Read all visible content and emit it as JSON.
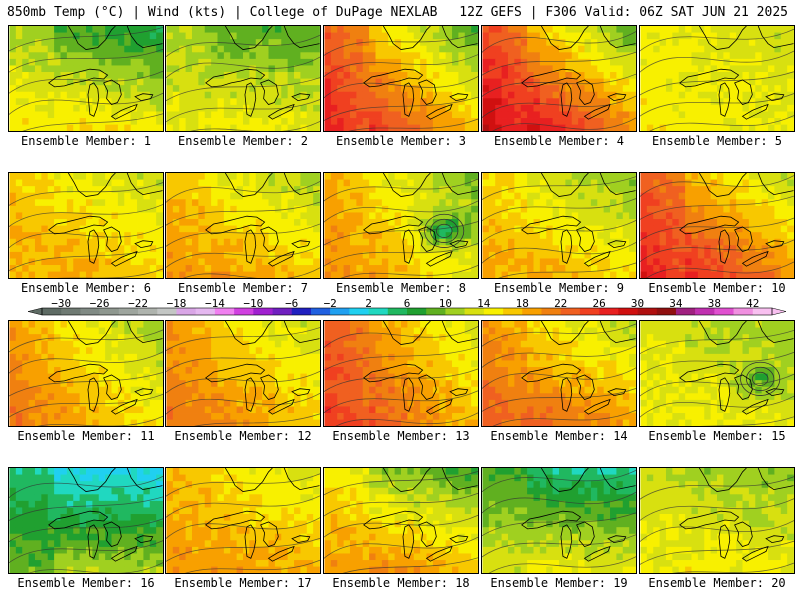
{
  "header": {
    "title_left": "850mb Temp (°C) | Wind (kts) | College of DuPage NEXLAB",
    "title_right": "12Z GEFS | F306 Valid: 06Z SAT JUN 21 2025"
  },
  "member_label_prefix": "Ensemble Member:",
  "members": [
    {
      "number": "1",
      "base": 12,
      "warm_west": 2,
      "cold_north": 6,
      "cool_spot": 0
    },
    {
      "number": "2",
      "base": 12,
      "warm_west": 1,
      "cold_north": 4,
      "cool_spot": 0
    },
    {
      "number": "3",
      "base": 18,
      "warm_west": 8,
      "cold_north": 6,
      "cool_spot": 0
    },
    {
      "number": "4",
      "base": 20,
      "warm_west": 8,
      "cold_north": 8,
      "cool_spot": 0
    },
    {
      "number": "5",
      "base": 14,
      "warm_west": 1,
      "cold_north": 1,
      "cool_spot": 0
    },
    {
      "number": "6",
      "base": 16,
      "warm_west": 2,
      "cold_north": 3,
      "cool_spot": 0
    },
    {
      "number": "7",
      "base": 16,
      "warm_west": 3,
      "cold_north": 4,
      "cool_spot": 0
    },
    {
      "number": "8",
      "base": 15,
      "warm_west": 5,
      "cold_north": 3,
      "cool_spot": 8
    },
    {
      "number": "9",
      "base": 15,
      "warm_west": 3,
      "cold_north": 4,
      "cool_spot": 0
    },
    {
      "number": "10",
      "base": 20,
      "warm_west": 6,
      "cold_north": 6,
      "cool_spot": 0
    },
    {
      "number": "11",
      "base": 16,
      "warm_west": 5,
      "cold_north": 3,
      "cool_spot": 0
    },
    {
      "number": "12",
      "base": 17,
      "warm_west": 4,
      "cold_north": 3,
      "cool_spot": 0
    },
    {
      "number": "13",
      "base": 19,
      "warm_west": 6,
      "cold_north": 3,
      "cool_spot": 0
    },
    {
      "number": "14",
      "base": 18,
      "warm_west": 4,
      "cold_north": 5,
      "cool_spot": 0
    },
    {
      "number": "15",
      "base": 13,
      "warm_west": 1,
      "cold_north": 2,
      "cool_spot": 4
    },
    {
      "number": "16",
      "base": 7,
      "warm_west": 0,
      "cold_north": 7,
      "cool_spot": 0
    },
    {
      "number": "17",
      "base": 17,
      "warm_west": 2,
      "cold_north": 3,
      "cool_spot": 0
    },
    {
      "number": "18",
      "base": 15,
      "warm_west": 3,
      "cold_north": 7,
      "cool_spot": 0
    },
    {
      "number": "19",
      "base": 10,
      "warm_west": 1,
      "cold_north": 7,
      "cool_spot": 0
    },
    {
      "number": "20",
      "base": 13,
      "warm_west": 1,
      "cold_north": 3,
      "cool_spot": 0
    }
  ],
  "colorbar": {
    "units": "°C",
    "labels": [
      "-30",
      "-26",
      "-22",
      "-18",
      "-14",
      "-10",
      "-6",
      "-2",
      "2",
      "6",
      "10",
      "14",
      "18",
      "22",
      "26",
      "30",
      "34",
      "38",
      "42"
    ],
    "label_values": [
      -30,
      -26,
      -22,
      -18,
      -14,
      -10,
      -6,
      -2,
      2,
      6,
      10,
      14,
      18,
      22,
      26,
      30,
      34,
      38,
      42
    ],
    "bins": [
      {
        "from": -32,
        "color": "#5e6b64"
      },
      {
        "from": -30,
        "color": "#6f7a73"
      },
      {
        "from": -28,
        "color": "#808a84"
      },
      {
        "from": -26,
        "color": "#8e978f"
      },
      {
        "from": -24,
        "color": "#9ea59e"
      },
      {
        "from": -22,
        "color": "#aeb3ad"
      },
      {
        "from": -20,
        "color": "#c3c6c4"
      },
      {
        "from": -18,
        "color": "#d9a6e6"
      },
      {
        "from": -16,
        "color": "#e5b8f0"
      },
      {
        "from": -14,
        "color": "#f080f0"
      },
      {
        "from": -12,
        "color": "#d040e0"
      },
      {
        "from": -10,
        "color": "#a020d0"
      },
      {
        "from": -8,
        "color": "#7020c0"
      },
      {
        "from": -6,
        "color": "#2020c0"
      },
      {
        "from": -4,
        "color": "#2060e0"
      },
      {
        "from": -2,
        "color": "#20a0f0"
      },
      {
        "from": 0,
        "color": "#20d0f0"
      },
      {
        "from": 2,
        "color": "#20d8c0"
      },
      {
        "from": 4,
        "color": "#20b860"
      },
      {
        "from": 6,
        "color": "#20a030"
      },
      {
        "from": 8,
        "color": "#60b020"
      },
      {
        "from": 10,
        "color": "#a0d020"
      },
      {
        "from": 12,
        "color": "#d8e010"
      },
      {
        "from": 14,
        "color": "#f8f000"
      },
      {
        "from": 16,
        "color": "#f8c800"
      },
      {
        "from": 18,
        "color": "#f8a000"
      },
      {
        "from": 20,
        "color": "#f08010"
      },
      {
        "from": 22,
        "color": "#f06020"
      },
      {
        "from": 24,
        "color": "#f04020"
      },
      {
        "from": 26,
        "color": "#e82020"
      },
      {
        "from": 28,
        "color": "#d01010"
      },
      {
        "from": 30,
        "color": "#b01010"
      },
      {
        "from": 32,
        "color": "#901010"
      },
      {
        "from": 34,
        "color": "#a02080"
      },
      {
        "from": 36,
        "color": "#c030b0"
      },
      {
        "from": 38,
        "color": "#e050d0"
      },
      {
        "from": 40,
        "color": "#f090e0"
      },
      {
        "from": 42,
        "color": "#f8c0f0"
      }
    ],
    "range": [
      -32,
      44
    ]
  }
}
